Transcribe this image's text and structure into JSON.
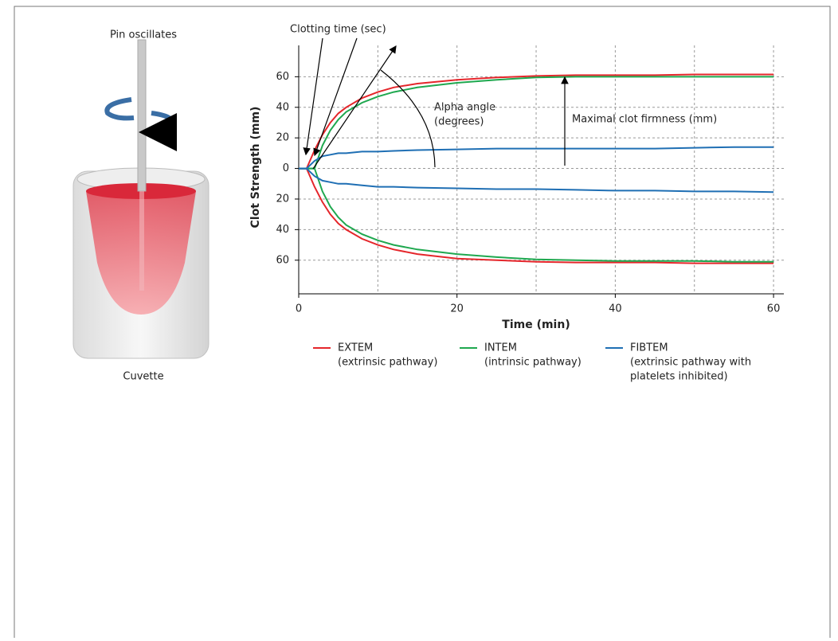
{
  "illustration": {
    "top_label": "Pin oscillates",
    "bottom_label": "Cuvette"
  },
  "chart_data": {
    "type": "line",
    "y_label": "Clot Strength (mm)",
    "x_label": "Time (min)",
    "annotations": {
      "clotting_time": "Clotting time (sec)",
      "alpha_angle": [
        "Alpha angle",
        "(degrees)"
      ],
      "max_firmness": "Maximal clot firmness (mm)"
    },
    "xlim": [
      0,
      61.3
    ],
    "ylim": [
      -82,
      80.5
    ],
    "xticks": [
      0,
      20,
      40,
      60
    ],
    "xgrid": [
      10,
      20,
      30,
      40,
      50,
      60
    ],
    "yticks": [
      {
        "value": 60,
        "label": "60"
      },
      {
        "value": 40,
        "label": "40"
      },
      {
        "value": 20,
        "label": "20"
      },
      0,
      {
        "value": -20,
        "label": "20"
      },
      {
        "value": -40,
        "label": "40"
      },
      {
        "value": -60,
        "label": "60"
      }
    ],
    "grid": true,
    "x": [
      0,
      1,
      2,
      3,
      4,
      5,
      6,
      8,
      10,
      12,
      15,
      20,
      25,
      30,
      35,
      40,
      45,
      50,
      55,
      60
    ],
    "series": [
      {
        "name": "EXTEM",
        "description": [
          "(extrinsic pathway)"
        ],
        "color": "#e5262b",
        "values": [
          0,
          0,
          12,
          22,
          30,
          36,
          40,
          46,
          50,
          53,
          55.5,
          58,
          59.5,
          60.5,
          61,
          61,
          61,
          61.5,
          61.5,
          61.5
        ],
        "lower_values": [
          0,
          0,
          -12,
          -22,
          -30,
          -36,
          -40,
          -46,
          -50,
          -53,
          -56,
          -59,
          -60,
          -61,
          -61.5,
          -61.5,
          -61.5,
          -62,
          -62,
          -62
        ]
      },
      {
        "name": "INTEM",
        "description": [
          "(intrinsic pathway)"
        ],
        "color": "#1fa84f",
        "values": [
          0,
          0,
          0,
          15,
          25,
          32,
          37,
          43,
          47,
          50,
          53,
          56,
          58,
          59.5,
          60,
          60,
          60,
          60,
          60,
          60
        ],
        "lower_values": [
          0,
          0,
          0,
          -15,
          -25,
          -32,
          -37,
          -43,
          -47,
          -50,
          -53,
          -56,
          -58,
          -59.5,
          -60,
          -60.5,
          -60.5,
          -60.5,
          -61,
          -61
        ]
      },
      {
        "name": "FIBTEM",
        "description": [
          "(extrinsic pathway with",
          "platelets inhibited)"
        ],
        "color": "#1f6fb4",
        "values": [
          0,
          0,
          5,
          8,
          9,
          10,
          10,
          11,
          11,
          11.5,
          12,
          12.5,
          13,
          13,
          13,
          13,
          13,
          13.5,
          14,
          14
        ],
        "lower_values": [
          0,
          0,
          -5,
          -8,
          -9,
          -10,
          -10,
          -11,
          -12,
          -12,
          -12.5,
          -13,
          -13.5,
          -13.5,
          -14,
          -14.5,
          -14.5,
          -15,
          -15,
          -15.5
        ]
      }
    ]
  }
}
